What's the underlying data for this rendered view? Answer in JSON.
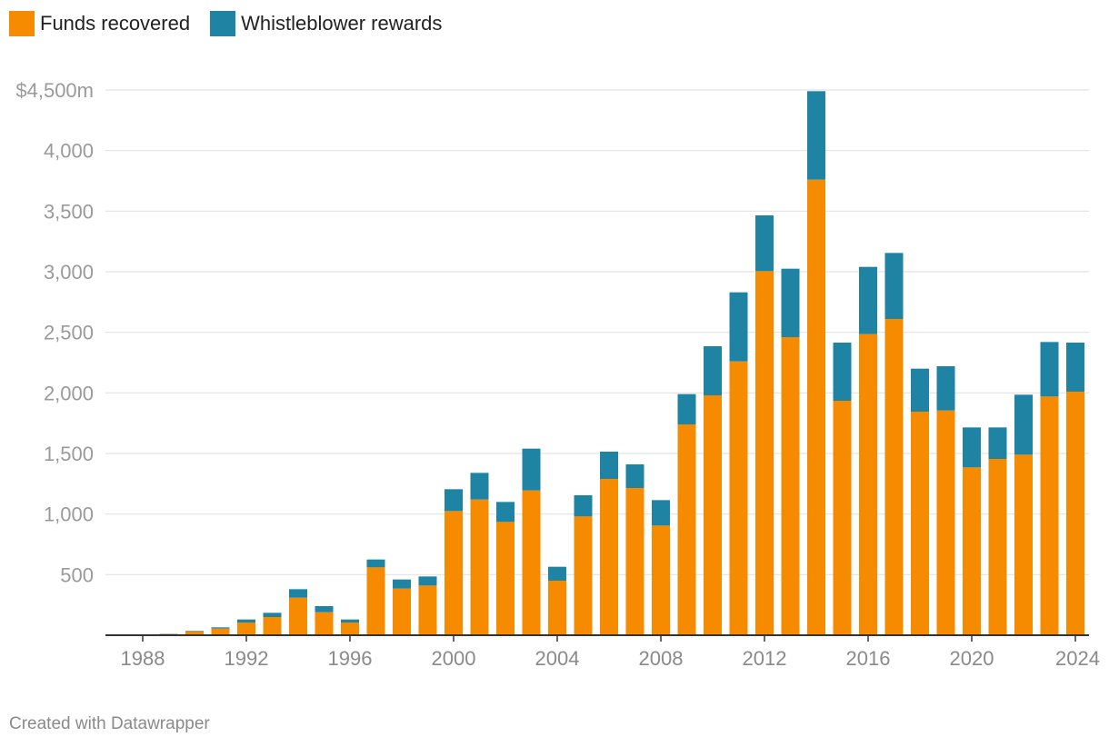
{
  "legend": [
    {
      "label": "Funds recovered",
      "color": "#f68b00"
    },
    {
      "label": "Whistleblower rewards",
      "color": "#1f84a3"
    }
  ],
  "credit": "Created with Datawrapper",
  "chart_data": {
    "type": "bar",
    "stacked": true,
    "title": "",
    "xlabel": "",
    "ylabel": "",
    "ylim": [
      0,
      4500
    ],
    "y_ticks": [
      500,
      1000,
      1500,
      2000,
      2500,
      3000,
      3500,
      4000,
      4500
    ],
    "y_tick_labels": [
      "500",
      "1,000",
      "1,500",
      "2,000",
      "2,500",
      "3,000",
      "3,500",
      "4,000",
      "$4,500m"
    ],
    "x_tick_labels": [
      "1988",
      "1992",
      "1996",
      "2000",
      "2004",
      "2008",
      "2012",
      "2016",
      "2020",
      "2024"
    ],
    "grid": true,
    "legend_position": "top-left",
    "categories": [
      "1988",
      "1989",
      "1990",
      "1991",
      "1992",
      "1993",
      "1994",
      "1995",
      "1996",
      "1997",
      "1998",
      "1999",
      "2000",
      "2001",
      "2002",
      "2003",
      "2004",
      "2005",
      "2006",
      "2007",
      "2008",
      "2009",
      "2010",
      "2011",
      "2012",
      "2013",
      "2014",
      "2015",
      "2016",
      "2017",
      "2018",
      "2019",
      "2020",
      "2021",
      "2022",
      "2023",
      "2024"
    ],
    "series": [
      {
        "name": "Funds recovered",
        "color": "#f68b00",
        "values": [
          2,
          10,
          30,
          55,
          105,
          150,
          310,
          190,
          105,
          560,
          385,
          410,
          1025,
          1120,
          935,
          1195,
          450,
          980,
          1290,
          1215,
          905,
          1740,
          1980,
          2260,
          3005,
          2460,
          3760,
          1935,
          2485,
          2610,
          1845,
          1855,
          1385,
          1455,
          1490,
          1970,
          2010
        ]
      },
      {
        "name": "Whistleblower rewards",
        "color": "#1f84a3",
        "values": [
          0,
          2,
          5,
          10,
          25,
          35,
          70,
          50,
          25,
          65,
          75,
          75,
          180,
          220,
          165,
          345,
          115,
          175,
          225,
          195,
          210,
          250,
          405,
          570,
          460,
          565,
          730,
          480,
          555,
          545,
          355,
          365,
          330,
          260,
          495,
          450,
          405
        ]
      }
    ]
  }
}
